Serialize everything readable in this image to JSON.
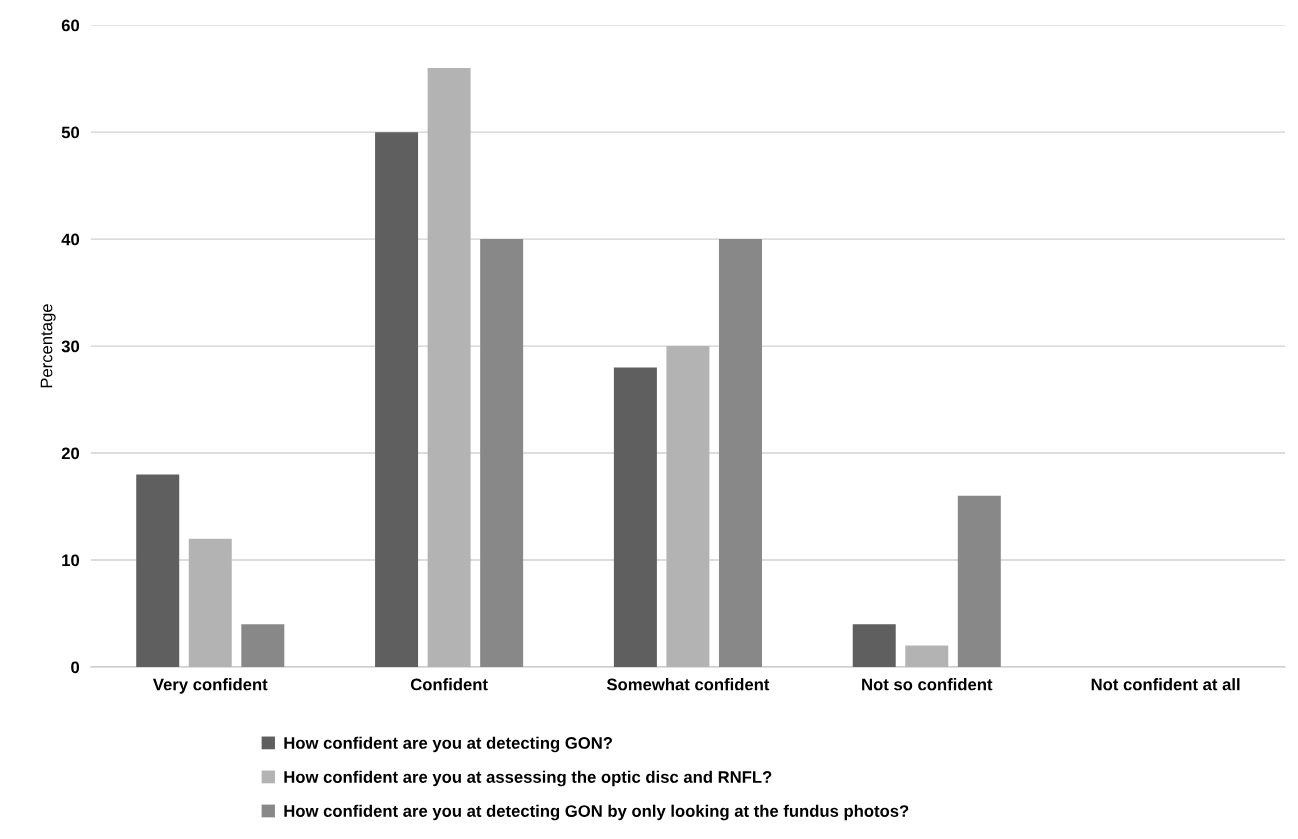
{
  "chart_data": {
    "type": "bar",
    "ylabel": "Percentage",
    "categories": [
      "Very confident",
      "Confident",
      "Somewhat confident",
      "Not so confident",
      "Not confident at all"
    ],
    "series": [
      {
        "name": "How confident are you at detecting GON?",
        "color": "#5f5f5f",
        "values": [
          18,
          50,
          28,
          4,
          0
        ]
      },
      {
        "name": "How confident are you at assessing the optic disc and RNFL?",
        "color": "#b3b3b3",
        "values": [
          12,
          56,
          30,
          2,
          0
        ]
      },
      {
        "name": "How confident are you at detecting GON by only looking at the fundus photos?",
        "color": "#888888",
        "values": [
          4,
          40,
          40,
          16,
          0
        ]
      }
    ],
    "ylim": [
      0,
      60
    ],
    "yticks": [
      0,
      10,
      20,
      30,
      40,
      50,
      60
    ],
    "grid": "y",
    "legend": "bottom"
  }
}
